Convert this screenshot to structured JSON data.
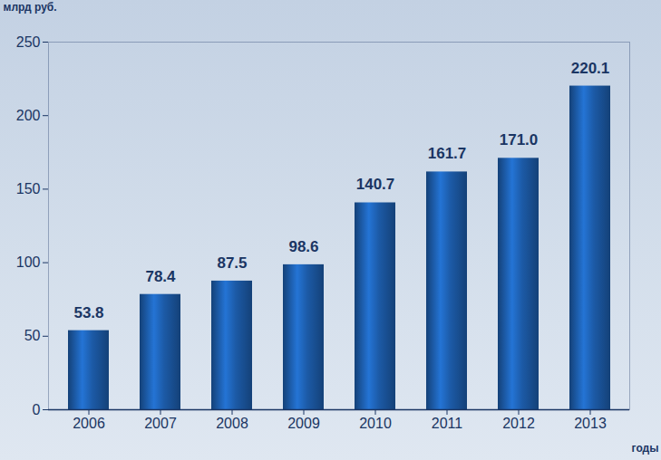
{
  "chart_data": {
    "type": "bar",
    "categories": [
      "2006",
      "2007",
      "2008",
      "2009",
      "2010",
      "2011",
      "2012",
      "2013"
    ],
    "values": [
      53.8,
      78.4,
      87.5,
      98.6,
      140.7,
      161.7,
      171.0,
      220.1
    ],
    "value_labels": [
      "53.8",
      "78.4",
      "87.5",
      "98.6",
      "140.7",
      "161.7",
      "171.0",
      "220.1"
    ],
    "color": "#1c5aa6",
    "ylim": [
      0,
      250
    ],
    "yticks": [
      0,
      50,
      100,
      150,
      200,
      250
    ],
    "y_label": "млрд руб.",
    "x_label": "годы",
    "data_labels": true,
    "grid": false
  }
}
